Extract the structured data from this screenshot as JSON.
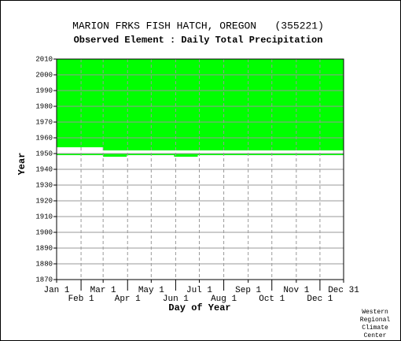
{
  "chart_data": {
    "type": "range",
    "title": "MARION FRKS FISH HATCH, OREGON   (355221)",
    "subtitle": "Observed Element : Daily Total Precipitation",
    "x_label": "Day of Year",
    "y_label": "Year",
    "credit": [
      "Western",
      "Regional",
      "Climate",
      "Center"
    ],
    "color": "#00ff00",
    "grid": true,
    "xlim": [
      1,
      365
    ],
    "xticks": [
      {
        "value": 1,
        "label": "Jan 1"
      },
      {
        "value": 32,
        "label": "Feb 1"
      },
      {
        "value": 60,
        "label": "Mar 1"
      },
      {
        "value": 91,
        "label": "Apr 1"
      },
      {
        "value": 121,
        "label": "May 1"
      },
      {
        "value": 152,
        "label": "Jun 1"
      },
      {
        "value": 182,
        "label": "Jul 1"
      },
      {
        "value": 213,
        "label": "Aug 1"
      },
      {
        "value": 244,
        "label": "Sep 1"
      },
      {
        "value": 274,
        "label": "Oct 1"
      },
      {
        "value": 305,
        "label": "Nov 1"
      },
      {
        "value": 335,
        "label": "Dec 1"
      },
      {
        "value": 365,
        "label": "Dec 31"
      }
    ],
    "ylim": [
      1870,
      2010
    ],
    "yticks": [
      1870,
      1880,
      1890,
      1900,
      1910,
      1920,
      1930,
      1940,
      1950,
      1960,
      1970,
      1980,
      1990,
      2000,
      2010
    ],
    "ranges": [
      {
        "x": [
          1,
          365
        ],
        "y": [
          1954,
          2010
        ]
      },
      {
        "x": [
          60,
          365
        ],
        "y": [
          1952,
          1954
        ]
      },
      {
        "x": [
          1,
          365
        ],
        "y": [
          1949,
          1950
        ]
      },
      {
        "x": [
          60,
          90
        ],
        "y": [
          1948,
          1949
        ]
      },
      {
        "x": [
          150,
          180
        ],
        "y": [
          1948,
          1949
        ]
      }
    ]
  }
}
